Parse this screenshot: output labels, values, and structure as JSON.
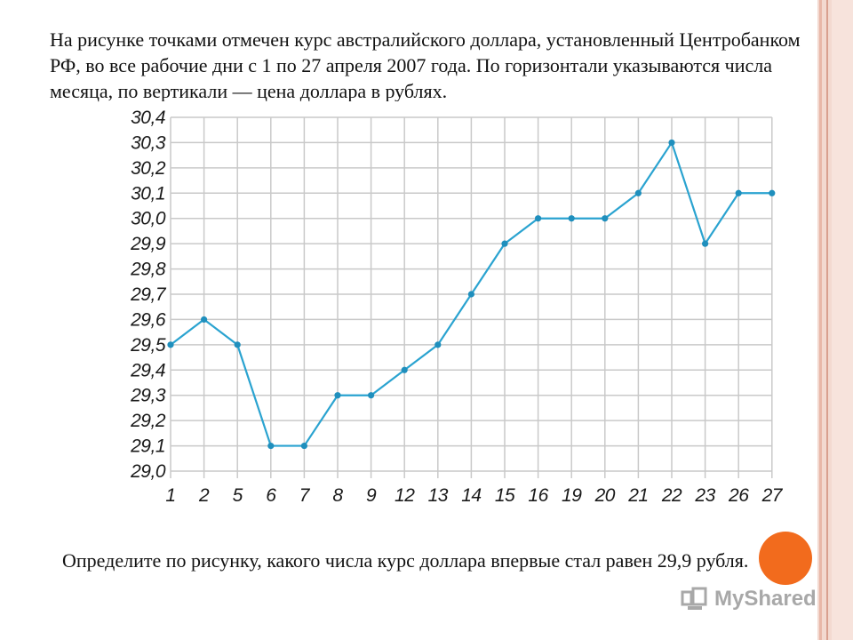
{
  "slide": {
    "question": "На рисунке точками отмечен курс австралийского доллара, установленный Центробанком РФ, во все рабочие дни с 1 по 27 апреля 2007 года. По горизонтали указываются числа месяца, по вертикали — цена доллара в рублях.",
    "task": "Определите по рисунку, какого числа курс доллара впервые стал равен 29,9 рубля.",
    "watermark": "MyShared"
  },
  "chart_data": {
    "type": "line",
    "title": "",
    "xlabel": "",
    "ylabel": "",
    "categories": [
      "1",
      "2",
      "5",
      "6",
      "7",
      "8",
      "9",
      "12",
      "13",
      "14",
      "15",
      "16",
      "19",
      "20",
      "21",
      "22",
      "23",
      "26",
      "27"
    ],
    "values": [
      29.5,
      29.6,
      29.5,
      29.1,
      29.1,
      29.3,
      29.3,
      29.4,
      29.5,
      29.7,
      29.9,
      30.0,
      30.0,
      30.0,
      30.1,
      30.3,
      29.9,
      30.1,
      30.1
    ],
    "ylim": [
      29.0,
      30.4
    ],
    "yticks": [
      "29,0",
      "29,1",
      "29,2",
      "29,3",
      "29,4",
      "29,5",
      "29,6",
      "29,7",
      "29,8",
      "29,9",
      "30,0",
      "30,1",
      "30,2",
      "30,3",
      "30,4"
    ],
    "grid": true,
    "colors": {
      "line": "#2aa3d0",
      "marker": "#1f8fbd",
      "grid": "#c9c9c9",
      "axis": "#b5b5b5"
    }
  }
}
